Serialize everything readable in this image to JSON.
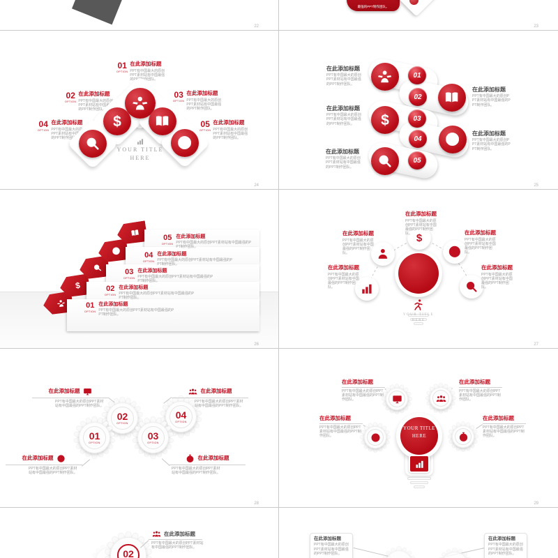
{
  "common": {
    "title": "在此添加标题",
    "desc": "PPT有中国最大的原创PPT素材站有中国最强的PPT制作团队。",
    "option": "OPTION",
    "your_title_1": "YOUR TITLE",
    "your_title_2": "HERE",
    "accent": "#c11021",
    "text_gray": "#9b9b9b"
  },
  "slides": {
    "s22": {
      "page": "22"
    },
    "s23": {
      "page": "23",
      "ribbon": "最强的PPT制作团队。"
    },
    "s24": {
      "page": "24",
      "center_icon": "chart-bars",
      "icons": [
        "presenter",
        "dollar",
        "book",
        "search",
        "clock"
      ],
      "items": [
        {
          "num": "01"
        },
        {
          "num": "02"
        },
        {
          "num": "03"
        },
        {
          "num": "04"
        },
        {
          "num": "05"
        }
      ]
    },
    "s25": {
      "page": "25",
      "icons": [
        "presenter",
        "book",
        "dollar",
        "clock",
        "search"
      ],
      "items": [
        {
          "num": "01"
        },
        {
          "num": "02"
        },
        {
          "num": "03"
        },
        {
          "num": "04"
        },
        {
          "num": "05"
        }
      ]
    },
    "s26": {
      "page": "26",
      "icons": [
        "presenter",
        "dollar",
        "search",
        "clock",
        "book"
      ],
      "items": [
        {
          "num": "01"
        },
        {
          "num": "02"
        },
        {
          "num": "03"
        },
        {
          "num": "04"
        },
        {
          "num": "05"
        }
      ]
    },
    "s27": {
      "page": "27",
      "bulb_icon": "runner",
      "satellites": [
        "chart-bars",
        "person",
        "dollar",
        "clock",
        "search"
      ]
    },
    "s28": {
      "page": "28",
      "callout_icons": [
        "monitor-chart",
        "people",
        "globe",
        "stopwatch"
      ],
      "items": [
        {
          "num": "01"
        },
        {
          "num": "02"
        },
        {
          "num": "03"
        },
        {
          "num": "04"
        }
      ]
    },
    "s29": {
      "page": "29",
      "bulb_icon": "chart-bars",
      "gear_icons": [
        "monitor-chart",
        "people",
        "globe",
        "stopwatch"
      ]
    },
    "s30": {
      "item_num": "02",
      "callout_icon": "people"
    },
    "s31": {}
  }
}
